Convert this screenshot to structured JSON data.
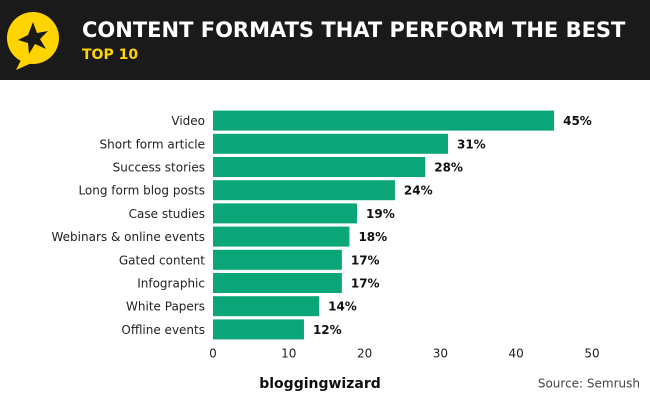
{
  "chart_data": {
    "type": "bar",
    "orientation": "horizontal",
    "title": "CONTENT FORMATS THAT PERFORM THE BEST",
    "subtitle": "TOP 10",
    "categories": [
      "Video",
      "Short form article",
      "Success stories",
      "Long form blog posts",
      "Case studies",
      "Webinars & online events",
      "Gated content",
      "Infographic",
      "White Papers",
      "Offline events"
    ],
    "values": [
      45,
      31,
      28,
      24,
      19,
      18,
      17,
      17,
      14,
      12
    ],
    "value_labels": [
      "45%",
      "31%",
      "28%",
      "24%",
      "19%",
      "18%",
      "17%",
      "17%",
      "14%",
      "12%"
    ],
    "color": "#0aa678",
    "xlim": [
      0,
      50
    ],
    "xticks": [
      0,
      10,
      20,
      30,
      40,
      50
    ],
    "grid": false,
    "brand": "bloggingwizard",
    "source": "Source: Semrush"
  }
}
